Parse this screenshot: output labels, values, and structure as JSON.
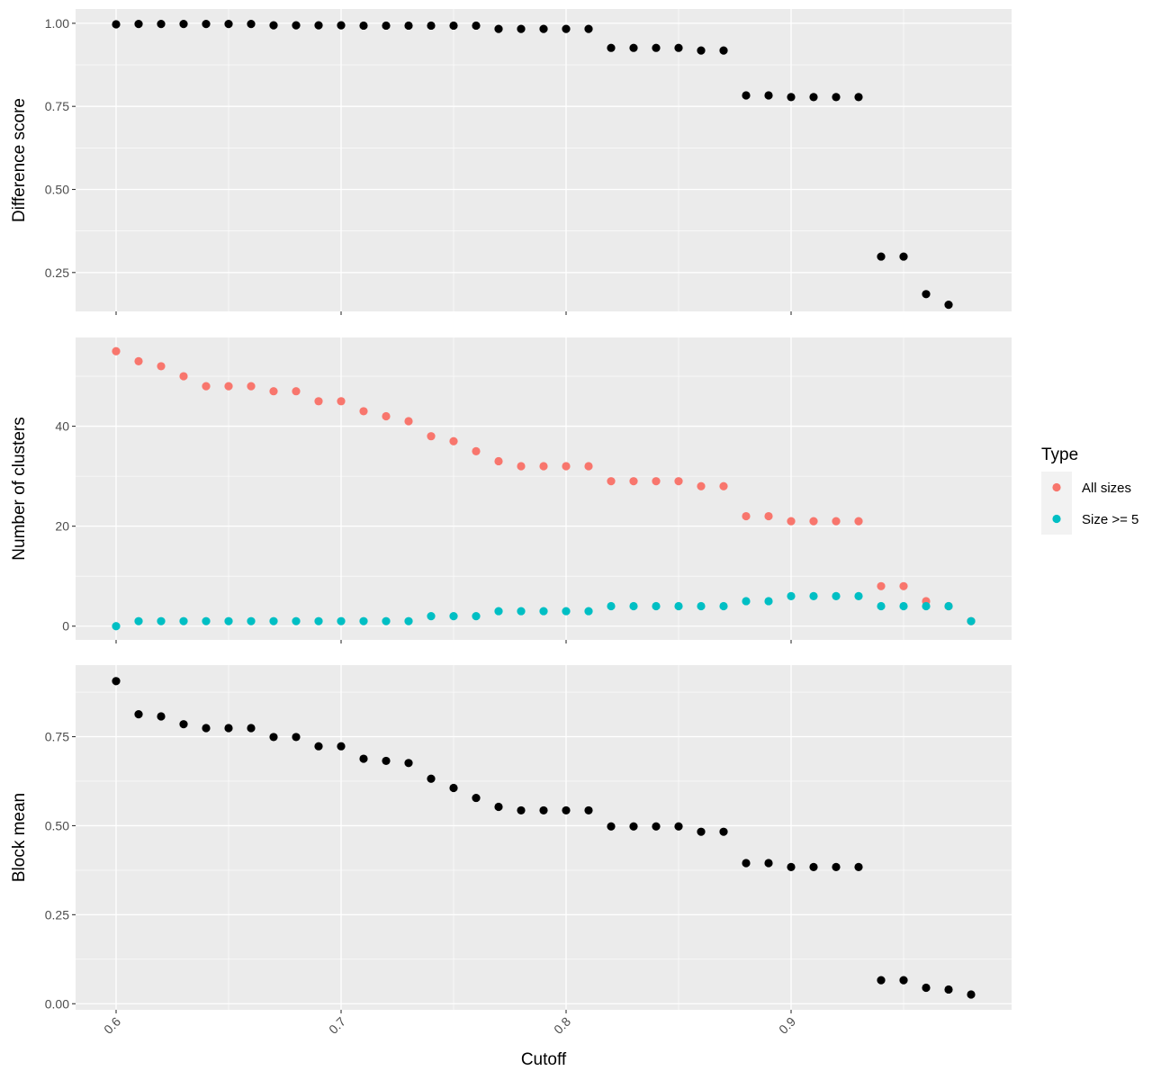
{
  "chart_data": {
    "type": "scatter",
    "x_label": "Cutoff",
    "x_ticks": [
      "0.6",
      "0.7",
      "0.8",
      "0.9"
    ],
    "x_tick_values": [
      0.6,
      0.7,
      0.8,
      0.9
    ],
    "x_range": [
      0.582,
      0.998
    ],
    "grid": true,
    "legend": {
      "title": "Type",
      "position": "right",
      "entries": [
        {
          "label": "All sizes",
          "color": "#F8766D"
        },
        {
          "label": "Size >= 5",
          "color": "#00BFC4"
        }
      ]
    },
    "panels": [
      {
        "id": "difference",
        "ylabel": "Difference score",
        "y_ticks": [
          "0.25",
          "0.50",
          "0.75",
          "1.00"
        ],
        "y_tick_values": [
          0.25,
          0.5,
          0.75,
          1.0
        ],
        "y_range": [
          0.133,
          1.043
        ],
        "series": [
          {
            "color": "#000000",
            "x": [
              0.6,
              0.61,
              0.62,
              0.63,
              0.64,
              0.65,
              0.66,
              0.67,
              0.68,
              0.69,
              0.7,
              0.71,
              0.72,
              0.73,
              0.74,
              0.75,
              0.76,
              0.77,
              0.78,
              0.79,
              0.8,
              0.81,
              0.82,
              0.83,
              0.84,
              0.85,
              0.86,
              0.87,
              0.88,
              0.89,
              0.9,
              0.91,
              0.92,
              0.93,
              0.94,
              0.95,
              0.96,
              0.97
            ],
            "y": [
              0.997,
              0.998,
              0.998,
              0.998,
              0.998,
              0.998,
              0.998,
              0.994,
              0.994,
              0.994,
              0.994,
              0.993,
              0.993,
              0.993,
              0.993,
              0.993,
              0.993,
              0.983,
              0.983,
              0.983,
              0.983,
              0.983,
              0.926,
              0.926,
              0.926,
              0.926,
              0.918,
              0.918,
              0.783,
              0.783,
              0.778,
              0.778,
              0.778,
              0.778,
              0.298,
              0.298,
              0.185,
              0.153
            ]
          }
        ]
      },
      {
        "id": "clusters",
        "ylabel": "Number of clusters",
        "y_ticks": [
          "0",
          "20",
          "40"
        ],
        "y_tick_values": [
          0,
          20,
          40
        ],
        "y_range": [
          -2.75,
          57.75
        ],
        "series": [
          {
            "name": "All sizes",
            "color": "#F8766D",
            "x": [
              0.6,
              0.61,
              0.62,
              0.63,
              0.64,
              0.65,
              0.66,
              0.67,
              0.68,
              0.69,
              0.7,
              0.71,
              0.72,
              0.73,
              0.74,
              0.75,
              0.76,
              0.77,
              0.78,
              0.79,
              0.8,
              0.81,
              0.82,
              0.83,
              0.84,
              0.85,
              0.86,
              0.87,
              0.88,
              0.89,
              0.9,
              0.91,
              0.92,
              0.93,
              0.94,
              0.95,
              0.96,
              0.97,
              0.98
            ],
            "y": [
              55,
              53,
              52,
              50,
              48,
              48,
              48,
              47,
              47,
              45,
              45,
              43,
              42,
              41,
              38,
              37,
              35,
              33,
              32,
              32,
              32,
              32,
              29,
              29,
              29,
              29,
              28,
              28,
              22,
              22,
              21,
              21,
              21,
              21,
              8,
              8,
              5,
              4,
              1
            ]
          },
          {
            "name": "Size >= 5",
            "color": "#00BFC4",
            "x": [
              0.6,
              0.61,
              0.62,
              0.63,
              0.64,
              0.65,
              0.66,
              0.67,
              0.68,
              0.69,
              0.7,
              0.71,
              0.72,
              0.73,
              0.74,
              0.75,
              0.76,
              0.77,
              0.78,
              0.79,
              0.8,
              0.81,
              0.82,
              0.83,
              0.84,
              0.85,
              0.86,
              0.87,
              0.88,
              0.89,
              0.9,
              0.91,
              0.92,
              0.93,
              0.94,
              0.95,
              0.96,
              0.97,
              0.98
            ],
            "y": [
              0,
              1,
              1,
              1,
              1,
              1,
              1,
              1,
              1,
              1,
              1,
              1,
              1,
              1,
              2,
              2,
              2,
              3,
              3,
              3,
              3,
              3,
              4,
              4,
              4,
              4,
              4,
              4,
              5,
              5,
              6,
              6,
              6,
              6,
              4,
              4,
              4,
              4,
              1
            ]
          }
        ]
      },
      {
        "id": "block",
        "ylabel": "Block mean",
        "y_ticks": [
          "0.00",
          "0.25",
          "0.50",
          "0.75"
        ],
        "y_tick_values": [
          0.0,
          0.25,
          0.5,
          0.75
        ],
        "y_range": [
          -0.017,
          0.951
        ],
        "series": [
          {
            "color": "#000000",
            "x": [
              0.6,
              0.61,
              0.62,
              0.63,
              0.64,
              0.65,
              0.66,
              0.67,
              0.68,
              0.69,
              0.7,
              0.71,
              0.72,
              0.73,
              0.74,
              0.75,
              0.76,
              0.77,
              0.78,
              0.79,
              0.8,
              0.81,
              0.82,
              0.83,
              0.84,
              0.85,
              0.86,
              0.87,
              0.88,
              0.89,
              0.9,
              0.91,
              0.92,
              0.93,
              0.94,
              0.95,
              0.96,
              0.97,
              0.98
            ],
            "y": [
              0.906,
              0.813,
              0.807,
              0.785,
              0.774,
              0.774,
              0.774,
              0.749,
              0.749,
              0.723,
              0.723,
              0.688,
              0.682,
              0.676,
              0.632,
              0.606,
              0.578,
              0.553,
              0.543,
              0.543,
              0.543,
              0.543,
              0.498,
              0.498,
              0.498,
              0.498,
              0.483,
              0.483,
              0.395,
              0.395,
              0.384,
              0.384,
              0.384,
              0.384,
              0.066,
              0.066,
              0.045,
              0.04,
              0.026
            ]
          }
        ]
      }
    ]
  }
}
